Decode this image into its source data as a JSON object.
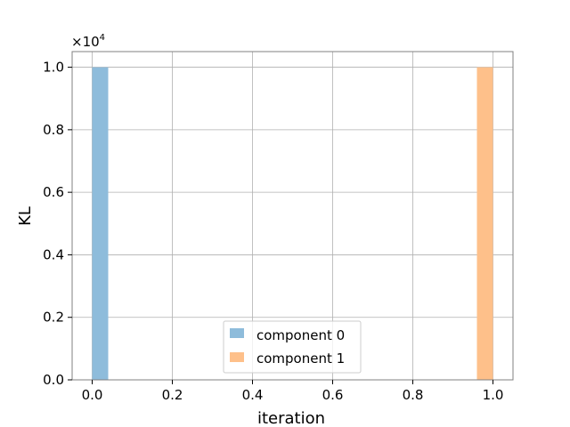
{
  "chart_data": {
    "type": "bar",
    "xlabel": "iteration",
    "ylabel": "KL",
    "xlim": [
      -0.05,
      1.05
    ],
    "ylim": [
      0,
      1.05
    ],
    "y_offset_text": "×10",
    "y_offset_exponent": "4",
    "grid": true,
    "legend_position": "lower-center",
    "x_ticks": [
      {
        "value": 0.0,
        "label": "0.0"
      },
      {
        "value": 0.2,
        "label": "0.2"
      },
      {
        "value": 0.4,
        "label": "0.4"
      },
      {
        "value": 0.6,
        "label": "0.6"
      },
      {
        "value": 0.8,
        "label": "0.8"
      },
      {
        "value": 1.0,
        "label": "1.0"
      }
    ],
    "y_ticks": [
      {
        "value": 0.0,
        "label": "0.0"
      },
      {
        "value": 0.2,
        "label": "0.2"
      },
      {
        "value": 0.4,
        "label": "0.4"
      },
      {
        "value": 0.6,
        "label": "0.6"
      },
      {
        "value": 0.8,
        "label": "0.8"
      },
      {
        "value": 1.0,
        "label": "1.0"
      }
    ],
    "series": [
      {
        "name": "component 0",
        "color": "#8ebcdb",
        "bars": [
          {
            "x0": 0.0,
            "x1": 0.04,
            "y": 1.0
          }
        ]
      },
      {
        "name": "component 1",
        "color": "#fec08a",
        "bars": [
          {
            "x0": 0.96,
            "x1": 1.0,
            "y": 1.0
          }
        ]
      }
    ]
  }
}
